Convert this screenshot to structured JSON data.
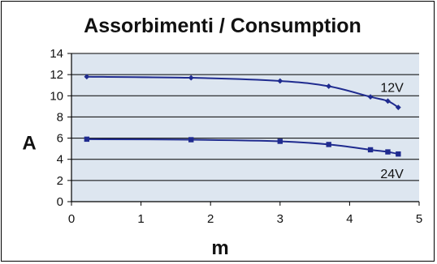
{
  "chart_data": {
    "type": "line",
    "title": "Assorbimenti / Consumption",
    "xlabel": "m",
    "ylabel": "A",
    "xlim": [
      0,
      5
    ],
    "ylim": [
      0,
      14
    ],
    "x_ticks": [
      "0",
      "1",
      "2",
      "3",
      "4",
      "5"
    ],
    "y_ticks": [
      "0",
      "2",
      "4",
      "6",
      "8",
      "10",
      "12",
      "14"
    ],
    "grid": true,
    "colors": {
      "plot_background": "#dde6f0",
      "grid": "#000000",
      "series": "#1f2b8f"
    },
    "series": [
      {
        "name": "12V",
        "marker": "diamond",
        "x": [
          0.22,
          1.72,
          3.0,
          3.7,
          4.3,
          4.55,
          4.7
        ],
        "y": [
          11.8,
          11.7,
          11.4,
          10.9,
          9.9,
          9.5,
          8.9
        ]
      },
      {
        "name": "24V",
        "marker": "square",
        "x": [
          0.22,
          1.72,
          3.0,
          3.7,
          4.3,
          4.55,
          4.7
        ],
        "y": [
          5.9,
          5.85,
          5.7,
          5.4,
          4.9,
          4.7,
          4.5
        ]
      }
    ]
  }
}
